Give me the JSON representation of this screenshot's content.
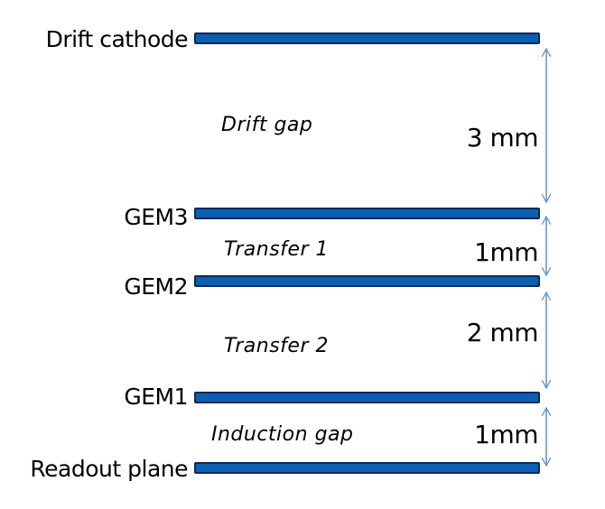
{
  "colors": {
    "electrode_fill": "#0b5fb0",
    "electrode_stroke": "#0a2a5a",
    "dimension_arrow": "#5b8fd0",
    "text": "#000000"
  },
  "electrodes": [
    {
      "id": "drift-cathode",
      "label": "Drift cathode"
    },
    {
      "id": "gem3",
      "label": "GEM3"
    },
    {
      "id": "gem2",
      "label": "GEM2"
    },
    {
      "id": "gem1",
      "label": "GEM1"
    },
    {
      "id": "readout-plane",
      "label": "Readout plane"
    }
  ],
  "gaps": [
    {
      "id": "drift-gap",
      "label": "Drift gap",
      "distance": "3 mm"
    },
    {
      "id": "transfer-1",
      "label": "Transfer 1",
      "distance": "1mm"
    },
    {
      "id": "transfer-2",
      "label": "Transfer 2",
      "distance": "2 mm"
    },
    {
      "id": "induction-gap",
      "label": "Induction  gap",
      "distance": "1mm"
    }
  ]
}
